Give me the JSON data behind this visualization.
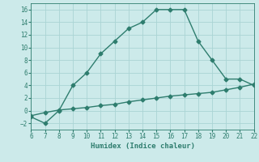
{
  "xlabel": "Humidex (Indice chaleur)",
  "line1_x": [
    6,
    7,
    8,
    9,
    10,
    11,
    12,
    13,
    14,
    15,
    16,
    17,
    18,
    19,
    20,
    21,
    22
  ],
  "line1_y": [
    -1,
    -2,
    0,
    4,
    6,
    9,
    11,
    13,
    14,
    16,
    16,
    16,
    11,
    8,
    5,
    5,
    4
  ],
  "line2_x": [
    6,
    7,
    8,
    9,
    10,
    11,
    12,
    13,
    14,
    15,
    16,
    17,
    18,
    19,
    20,
    21,
    22
  ],
  "line2_y": [
    -0.8,
    -0.3,
    0.1,
    0.3,
    0.5,
    0.8,
    1.0,
    1.4,
    1.7,
    2.0,
    2.3,
    2.5,
    2.7,
    2.9,
    3.3,
    3.7,
    4.2
  ],
  "line_color": "#2e7d6e",
  "bg_color": "#cceaea",
  "grid_color": "#aad4d4",
  "xlim": [
    6,
    22
  ],
  "ylim": [
    -3,
    17
  ],
  "xticks": [
    6,
    7,
    8,
    9,
    10,
    11,
    12,
    13,
    14,
    15,
    16,
    17,
    18,
    19,
    20,
    21,
    22
  ],
  "yticks": [
    -2,
    0,
    2,
    4,
    6,
    8,
    10,
    12,
    14,
    16
  ],
  "tick_fontsize": 5.5,
  "xlabel_fontsize": 6.5,
  "marker": "D",
  "marker_size": 2.5,
  "line_width": 1.0
}
